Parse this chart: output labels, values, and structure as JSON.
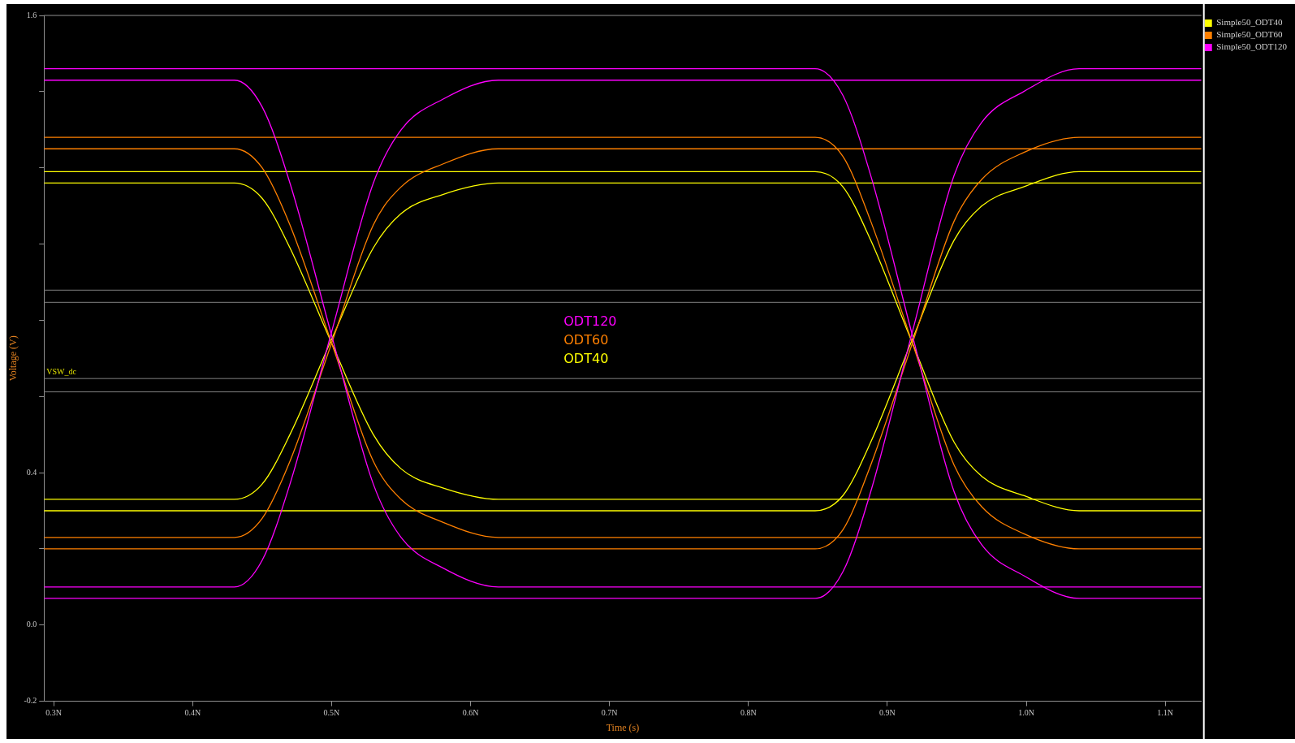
{
  "chart_data": {
    "type": "line",
    "xlabel": "Time (s)",
    "ylabel": "Voltage (V)",
    "xlim": [
      0.293,
      1.126
    ],
    "ylim": [
      -0.2,
      1.6
    ],
    "xticks": [
      {
        "value": 0.3,
        "label": "0.3N"
      },
      {
        "value": 0.4,
        "label": "0.4N"
      },
      {
        "value": 0.5,
        "label": "0.5N"
      },
      {
        "value": 0.6,
        "label": "0.6N"
      },
      {
        "value": 0.7,
        "label": "0.7N"
      },
      {
        "value": 0.8,
        "label": "0.8N"
      },
      {
        "value": 0.9,
        "label": "0.9N"
      },
      {
        "value": 1.0,
        "label": "1.0N"
      },
      {
        "value": 1.1,
        "label": "1.1N"
      }
    ],
    "yticks": [
      {
        "value": -0.2,
        "label": "-0.2"
      },
      {
        "value": 0.0,
        "label": "0.0"
      },
      {
        "value": 0.2,
        "label": null
      },
      {
        "value": 0.4,
        "label": "0.4"
      },
      {
        "value": 0.6,
        "label": null
      },
      {
        "value": 0.8,
        "label": null
      },
      {
        "value": 1.0,
        "label": null
      },
      {
        "value": 1.2,
        "label": null
      },
      {
        "value": 1.4,
        "label": null
      },
      {
        "value": 1.6,
        "label": "1.6"
      }
    ],
    "x": [
      0.293,
      0.4,
      0.43,
      0.45,
      0.47,
      0.5,
      0.53,
      0.55,
      0.58,
      0.62,
      0.7,
      0.8,
      0.848,
      0.868,
      0.888,
      0.918,
      0.948,
      0.968,
      0.998,
      1.038,
      1.126
    ],
    "series": [
      {
        "name": "Simple50_ODT40",
        "color": "#ffff00",
        "values": [
          1.16,
          1.16,
          1.16,
          1.12,
          0.99,
          0.74,
          0.5,
          0.41,
          0.36,
          0.33,
          0.33,
          0.33,
          0.33,
          0.33,
          0.33,
          0.33,
          0.33,
          0.33,
          0.33,
          0.33,
          0.33
        ]
      },
      {
        "color": "#ffff00",
        "values": [
          0.33,
          0.33,
          0.33,
          0.37,
          0.5,
          0.75,
          0.99,
          1.08,
          1.13,
          1.16,
          1.16,
          1.16,
          1.16,
          1.16,
          1.16,
          1.16,
          1.16,
          1.16,
          1.16,
          1.16,
          1.16
        ]
      },
      {
        "color": "#ffff00",
        "values": [
          1.19,
          1.19,
          1.19,
          1.19,
          1.19,
          1.19,
          1.19,
          1.19,
          1.19,
          1.19,
          1.19,
          1.19,
          1.19,
          1.15,
          1.01,
          0.74,
          0.48,
          0.39,
          0.34,
          0.3,
          0.3
        ]
      },
      {
        "color": "#ffff00",
        "values": [
          0.3,
          0.3,
          0.3,
          0.3,
          0.3,
          0.3,
          0.3,
          0.3,
          0.3,
          0.3,
          0.3,
          0.3,
          0.3,
          0.34,
          0.48,
          0.75,
          1.01,
          1.1,
          1.15,
          1.19,
          1.19
        ]
      },
      {
        "name": "Simple50_ODT60",
        "color": "#ff8000",
        "values": [
          1.25,
          1.25,
          1.25,
          1.2,
          1.05,
          0.74,
          0.43,
          0.33,
          0.27,
          0.23,
          0.23,
          0.23,
          0.23,
          0.23,
          0.23,
          0.23,
          0.23,
          0.23,
          0.23,
          0.23,
          0.23
        ]
      },
      {
        "color": "#ff8000",
        "values": [
          0.23,
          0.23,
          0.23,
          0.28,
          0.43,
          0.74,
          1.05,
          1.15,
          1.21,
          1.25,
          1.25,
          1.25,
          1.25,
          1.25,
          1.25,
          1.25,
          1.25,
          1.25,
          1.25,
          1.25,
          1.25
        ]
      },
      {
        "color": "#ff8000",
        "values": [
          1.28,
          1.28,
          1.28,
          1.28,
          1.28,
          1.28,
          1.28,
          1.28,
          1.28,
          1.28,
          1.28,
          1.28,
          1.28,
          1.23,
          1.06,
          0.74,
          0.42,
          0.31,
          0.24,
          0.2,
          0.2
        ]
      },
      {
        "color": "#ff8000",
        "values": [
          0.2,
          0.2,
          0.2,
          0.2,
          0.2,
          0.2,
          0.2,
          0.2,
          0.2,
          0.2,
          0.2,
          0.2,
          0.2,
          0.25,
          0.42,
          0.74,
          1.06,
          1.17,
          1.24,
          1.28,
          1.28
        ]
      },
      {
        "name": "Simple50_ODT120",
        "color": "#ff00ff",
        "values": [
          1.43,
          1.43,
          1.43,
          1.36,
          1.16,
          0.76,
          0.37,
          0.23,
          0.15,
          0.1,
          0.1,
          0.1,
          0.1,
          0.1,
          0.1,
          0.1,
          0.1,
          0.1,
          0.1,
          0.1,
          0.1
        ]
      },
      {
        "color": "#ff00ff",
        "values": [
          0.1,
          0.1,
          0.1,
          0.17,
          0.37,
          0.77,
          1.16,
          1.3,
          1.38,
          1.43,
          1.43,
          1.43,
          1.43,
          1.43,
          1.43,
          1.43,
          1.43,
          1.43,
          1.43,
          1.43,
          1.43
        ]
      },
      {
        "color": "#ff00ff",
        "values": [
          1.46,
          1.46,
          1.46,
          1.46,
          1.46,
          1.46,
          1.46,
          1.46,
          1.46,
          1.46,
          1.46,
          1.46,
          1.46,
          1.39,
          1.18,
          0.76,
          0.35,
          0.21,
          0.13,
          0.07,
          0.07
        ]
      },
      {
        "color": "#ff00ff",
        "values": [
          0.07,
          0.07,
          0.07,
          0.07,
          0.07,
          0.07,
          0.07,
          0.07,
          0.07,
          0.07,
          0.07,
          0.07,
          0.07,
          0.14,
          0.35,
          0.77,
          1.18,
          1.32,
          1.4,
          1.46,
          1.46
        ]
      }
    ],
    "ref_lines": [
      {
        "axis": "y",
        "value": 0.879,
        "label": null,
        "color": "#808080"
      },
      {
        "axis": "y",
        "value": 0.847,
        "label": null,
        "color": "#808080"
      },
      {
        "axis": "y",
        "value": 0.647,
        "label": "VSW_dc",
        "color": "#808080"
      },
      {
        "axis": "y",
        "value": 0.612,
        "label": null,
        "color": "#808080"
      }
    ],
    "annotations": [
      "ODT120",
      "ODT60",
      "ODT40"
    ],
    "legend": "top right",
    "grid": false,
    "marker": "none",
    "line_style": "solid"
  }
}
